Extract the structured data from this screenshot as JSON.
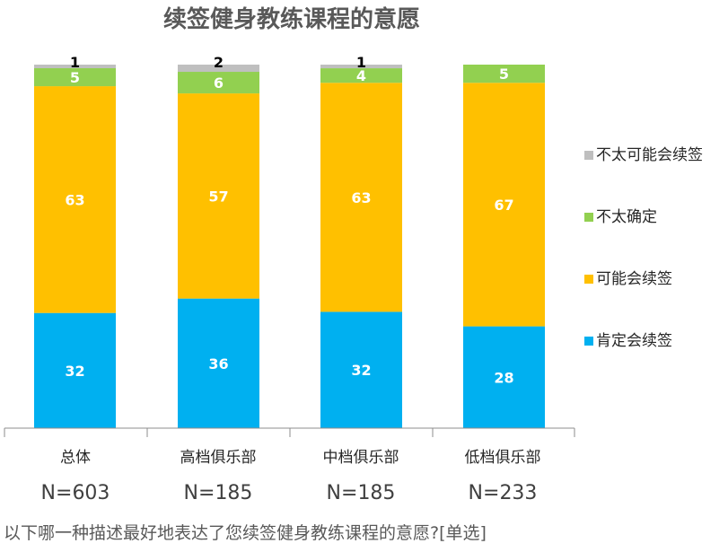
{
  "chart_data": {
    "type": "bar",
    "stacked": true,
    "title": "续签健身教练课程的意愿",
    "categories": [
      "总体",
      "高档俱乐部",
      "中档俱乐部",
      "低档俱乐部"
    ],
    "sample_sizes": [
      "N=603",
      "N=185",
      "N=185",
      "N=233"
    ],
    "series": [
      {
        "name": "肯定会续签",
        "values": [
          32,
          36,
          32,
          28
        ],
        "color": "#00B0F0"
      },
      {
        "name": "可能会续签",
        "values": [
          63,
          57,
          63,
          67
        ],
        "color": "#FFC000"
      },
      {
        "name": "不太确定",
        "values": [
          5,
          6,
          4,
          5
        ],
        "color": "#92D050"
      },
      {
        "name": "不太可能会续签",
        "values": [
          1,
          2,
          1,
          0
        ],
        "color": "#BFBFBF"
      }
    ],
    "legend_order": [
      "不太可能会续签",
      "不太确定",
      "可能会续签",
      "肯定会续签"
    ],
    "legend_position": "right",
    "grid": false
  },
  "footnote": "以下哪一种描述最好地表达了您续签健身教练课程的意愿?[单选]"
}
